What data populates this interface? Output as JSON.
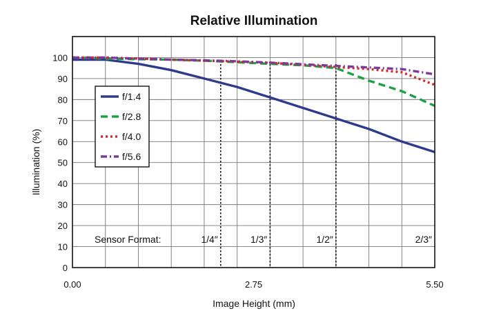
{
  "chart_data": {
    "type": "line",
    "title": "Relative Illumination",
    "xlabel": "Image Height (mm)",
    "ylabel": "Illumination (%)",
    "xlim": [
      0,
      5.5
    ],
    "ylim": [
      0,
      110
    ],
    "x_ticks": [
      0,
      2.75,
      5.5
    ],
    "x_tick_labels": [
      "0.00",
      "2.75",
      "5.50"
    ],
    "y_ticks": [
      0,
      10,
      20,
      30,
      40,
      50,
      60,
      70,
      80,
      90,
      100
    ],
    "grid": true,
    "legend_position": "left",
    "series": [
      {
        "name": "f/1.4",
        "color": "#2e3a8c",
        "dash": "solid",
        "x": [
          0,
          0.5,
          1.0,
          1.5,
          2.0,
          2.5,
          3.0,
          3.5,
          4.0,
          4.5,
          5.0,
          5.5
        ],
        "y": [
          99,
          99,
          97,
          94,
          90,
          86,
          81,
          76,
          71,
          66,
          60,
          55
        ]
      },
      {
        "name": "f/2.8",
        "color": "#1ea045",
        "dash": "dashed",
        "x": [
          0,
          0.5,
          1.0,
          1.5,
          2.0,
          2.5,
          3.0,
          3.5,
          4.0,
          4.5,
          5.0,
          5.5
        ],
        "y": [
          100,
          99.5,
          99.2,
          99,
          98.5,
          97.8,
          97,
          96.3,
          95,
          89,
          84,
          77
        ]
      },
      {
        "name": "f/4.0",
        "color": "#d42a2a",
        "dash": "dotted",
        "x": [
          0,
          0.5,
          1.0,
          1.5,
          2.0,
          2.5,
          3.0,
          3.5,
          4.0,
          4.5,
          5.0,
          5.5
        ],
        "y": [
          100,
          100,
          99.5,
          99,
          98.5,
          98,
          97.5,
          96.5,
          95.5,
          94.5,
          93,
          87
        ]
      },
      {
        "name": "f/5.6",
        "color": "#7b3a9a",
        "dash": "dashdot",
        "x": [
          0,
          0.5,
          1.0,
          1.5,
          2.0,
          2.5,
          3.0,
          3.5,
          4.0,
          4.5,
          5.0,
          5.5
        ],
        "y": [
          100,
          100,
          99.5,
          99,
          98.7,
          98.2,
          97.6,
          96.8,
          96,
          95.3,
          94.5,
          92
        ]
      }
    ],
    "sensor_formats": {
      "label": "Sensor Format:",
      "markers": [
        {
          "label": "1/4″",
          "x": 2.25
        },
        {
          "label": "1/3″",
          "x": 3.0
        },
        {
          "label": "1/2″",
          "x": 4.0
        },
        {
          "label": "2/3″",
          "x": 5.5
        }
      ]
    }
  }
}
